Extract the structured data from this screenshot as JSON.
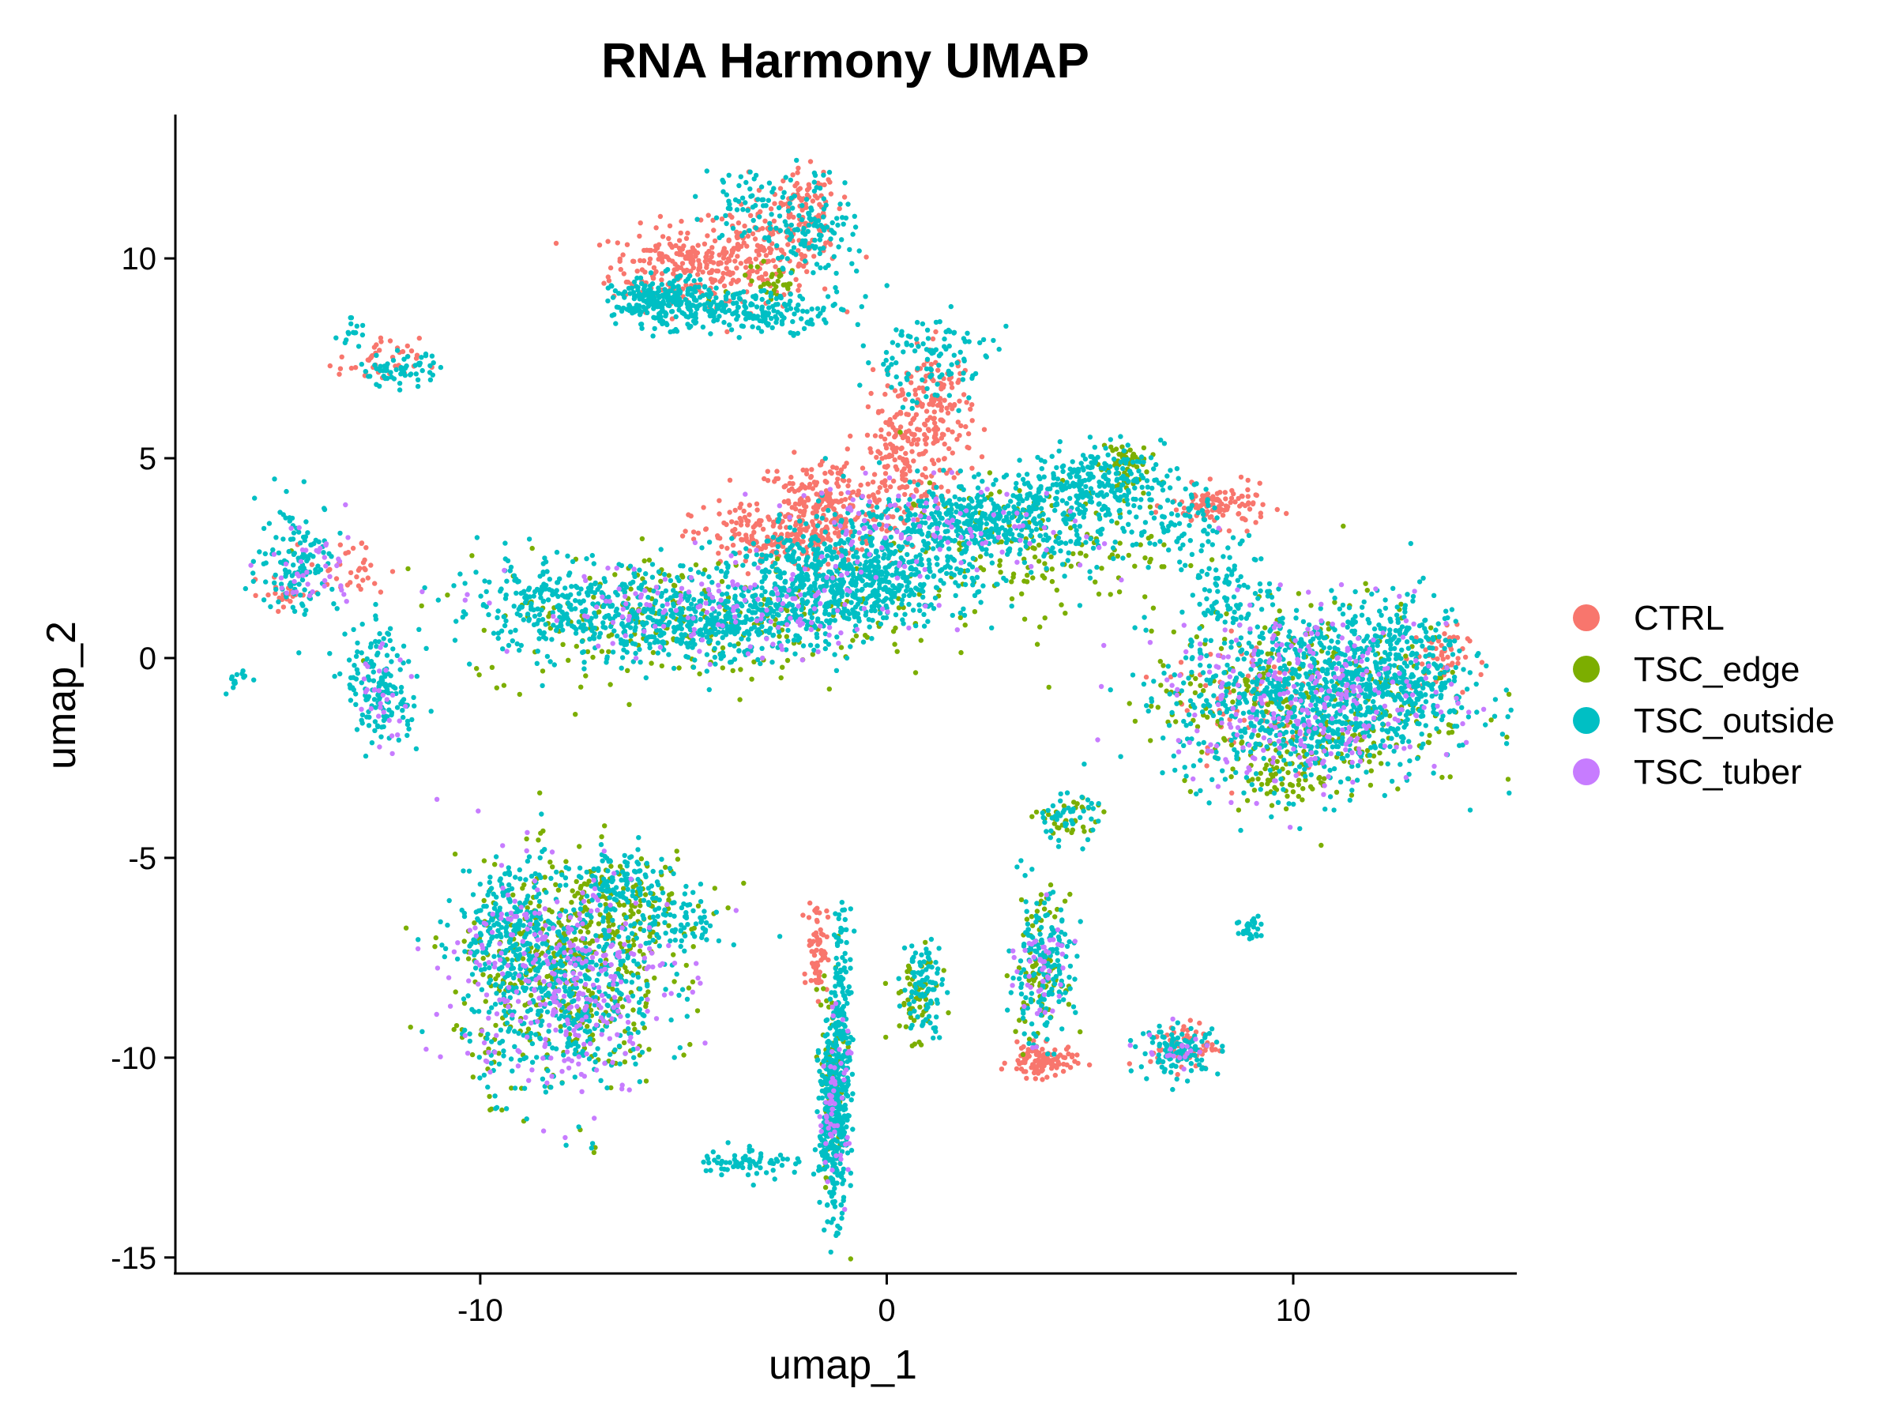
{
  "chart_data": {
    "type": "scatter",
    "title": "RNA Harmony UMAP",
    "xlabel": "umap_1",
    "ylabel": "umap_2",
    "xlim": [
      -17.5,
      15.5
    ],
    "ylim": [
      -15.4,
      13.6
    ],
    "x_ticks": [
      -10,
      0,
      10
    ],
    "x_tick_labels": [
      "-10",
      "0",
      "10"
    ],
    "y_ticks": [
      -15,
      -10,
      -5,
      0,
      5,
      10
    ],
    "y_tick_labels": [
      "-15",
      "-10",
      "-5",
      "0",
      "5",
      "10"
    ],
    "grid": false,
    "legend_position": "right",
    "series": [
      {
        "name": "CTRL",
        "color": "#F8766D",
        "clusters": [
          {
            "x": -5.0,
            "y": 9.8,
            "sx": 0.9,
            "sy": 0.5,
            "n": 220
          },
          {
            "x": -3.0,
            "y": 10.2,
            "sx": 0.9,
            "sy": 0.6,
            "n": 170
          },
          {
            "x": -2.0,
            "y": 11.2,
            "sx": 0.4,
            "sy": 0.5,
            "n": 80
          },
          {
            "x": -1.5,
            "y": 3.8,
            "sx": 0.9,
            "sy": 0.6,
            "n": 260
          },
          {
            "x": -3.0,
            "y": 3.0,
            "sx": 0.9,
            "sy": 0.4,
            "n": 160
          },
          {
            "x": 0.3,
            "y": 5.2,
            "sx": 0.4,
            "sy": 0.9,
            "n": 150
          },
          {
            "x": 1.3,
            "y": 6.0,
            "sx": 0.4,
            "sy": 0.9,
            "n": 150
          },
          {
            "x": 8.2,
            "y": 3.8,
            "sx": 0.6,
            "sy": 0.25,
            "n": 110
          },
          {
            "x": 3.8,
            "y": -10.1,
            "sx": 0.4,
            "sy": 0.2,
            "n": 110
          },
          {
            "x": -1.7,
            "y": -7.2,
            "sx": 0.12,
            "sy": 0.6,
            "n": 70
          },
          {
            "x": 13.5,
            "y": 0.0,
            "sx": 0.4,
            "sy": 0.4,
            "n": 50
          },
          {
            "x": -12.5,
            "y": 7.4,
            "sx": 0.5,
            "sy": 0.3,
            "n": 40
          },
          {
            "x": -13.2,
            "y": 2.2,
            "sx": 0.5,
            "sy": 0.4,
            "n": 35
          },
          {
            "x": -14.8,
            "y": 1.6,
            "sx": 0.3,
            "sy": 0.2,
            "n": 20
          },
          {
            "x": 7.3,
            "y": -9.7,
            "sx": 0.4,
            "sy": 0.3,
            "n": 60
          },
          {
            "x": 9.0,
            "y": -1.0,
            "sx": 1.0,
            "sy": 1.0,
            "n": 70
          }
        ]
      },
      {
        "name": "TSC_edge",
        "color": "#7CAE00",
        "clusters": [
          {
            "x": -4.5,
            "y": 1.0,
            "sx": 3.0,
            "sy": 0.8,
            "n": 250
          },
          {
            "x": 3.5,
            "y": 2.8,
            "sx": 1.6,
            "sy": 0.8,
            "n": 150
          },
          {
            "x": 5.8,
            "y": 4.8,
            "sx": 0.3,
            "sy": 0.4,
            "n": 60
          },
          {
            "x": 10.5,
            "y": -1.0,
            "sx": 2.0,
            "sy": 1.2,
            "n": 320
          },
          {
            "x": -8.0,
            "y": -8.0,
            "sx": 1.3,
            "sy": 1.4,
            "n": 380
          },
          {
            "x": -6.5,
            "y": -6.0,
            "sx": 1.0,
            "sy": 0.6,
            "n": 120
          },
          {
            "x": 3.8,
            "y": -7.8,
            "sx": 0.3,
            "sy": 0.9,
            "n": 90
          },
          {
            "x": 0.7,
            "y": -8.5,
            "sx": 0.3,
            "sy": 0.5,
            "n": 60
          },
          {
            "x": 4.5,
            "y": -4.1,
            "sx": 0.4,
            "sy": 0.3,
            "n": 35
          },
          {
            "x": -1.4,
            "y": -10.5,
            "sx": 0.2,
            "sy": 1.5,
            "n": 60
          },
          {
            "x": 10.0,
            "y": -3.0,
            "sx": 0.6,
            "sy": 0.3,
            "n": 60
          },
          {
            "x": -3.0,
            "y": 9.4,
            "sx": 0.5,
            "sy": 0.4,
            "n": 35
          }
        ]
      },
      {
        "name": "TSC_outside",
        "color": "#00BFC4",
        "clusters": [
          {
            "x": -5.5,
            "y": 8.9,
            "sx": 0.6,
            "sy": 0.3,
            "n": 260
          },
          {
            "x": -3.0,
            "y": 8.7,
            "sx": 1.0,
            "sy": 0.25,
            "n": 170
          },
          {
            "x": -1.8,
            "y": 10.8,
            "sx": 0.5,
            "sy": 0.7,
            "n": 120
          },
          {
            "x": -3.5,
            "y": 11.4,
            "sx": 0.5,
            "sy": 0.5,
            "n": 60
          },
          {
            "x": 1.0,
            "y": 7.5,
            "sx": 0.8,
            "sy": 0.6,
            "n": 110
          },
          {
            "x": -8.0,
            "y": 1.3,
            "sx": 1.4,
            "sy": 0.6,
            "n": 260
          },
          {
            "x": -4.5,
            "y": 0.9,
            "sx": 1.8,
            "sy": 0.5,
            "n": 520
          },
          {
            "x": -1.0,
            "y": 2.0,
            "sx": 1.5,
            "sy": 0.6,
            "n": 680
          },
          {
            "x": 2.5,
            "y": 3.4,
            "sx": 1.7,
            "sy": 0.5,
            "n": 560
          },
          {
            "x": 5.2,
            "y": 4.5,
            "sx": 0.8,
            "sy": 0.4,
            "n": 200
          },
          {
            "x": 7.2,
            "y": 3.5,
            "sx": 0.5,
            "sy": 0.5,
            "n": 70
          },
          {
            "x": 8.5,
            "y": 1.8,
            "sx": 0.5,
            "sy": 0.6,
            "n": 90
          },
          {
            "x": 10.5,
            "y": -1.0,
            "sx": 1.7,
            "sy": 1.1,
            "n": 950
          },
          {
            "x": 12.6,
            "y": 0.0,
            "sx": 0.8,
            "sy": 0.8,
            "n": 220
          },
          {
            "x": -8.0,
            "y": -8.2,
            "sx": 1.2,
            "sy": 1.3,
            "n": 560
          },
          {
            "x": -9.3,
            "y": -6.5,
            "sx": 0.6,
            "sy": 0.6,
            "n": 170
          },
          {
            "x": -6.6,
            "y": -5.6,
            "sx": 0.6,
            "sy": 0.4,
            "n": 110
          },
          {
            "x": -5.2,
            "y": -6.6,
            "sx": 0.6,
            "sy": 0.4,
            "n": 90
          },
          {
            "x": -1.3,
            "y": -11.5,
            "sx": 0.18,
            "sy": 1.2,
            "n": 380
          },
          {
            "x": -1.1,
            "y": -8.5,
            "sx": 0.12,
            "sy": 1.2,
            "n": 120
          },
          {
            "x": -3.4,
            "y": -12.6,
            "sx": 0.6,
            "sy": 0.2,
            "n": 70
          },
          {
            "x": 0.9,
            "y": -8.2,
            "sx": 0.25,
            "sy": 0.6,
            "n": 90
          },
          {
            "x": 3.8,
            "y": -7.8,
            "sx": 0.4,
            "sy": 0.9,
            "n": 170
          },
          {
            "x": 4.4,
            "y": -4.0,
            "sx": 0.4,
            "sy": 0.3,
            "n": 45
          },
          {
            "x": 7.2,
            "y": -9.8,
            "sx": 0.5,
            "sy": 0.3,
            "n": 110
          },
          {
            "x": 9.0,
            "y": -6.8,
            "sx": 0.2,
            "sy": 0.2,
            "n": 30
          },
          {
            "x": -14.5,
            "y": 2.5,
            "sx": 0.5,
            "sy": 0.7,
            "n": 130
          },
          {
            "x": -12.5,
            "y": -0.5,
            "sx": 0.4,
            "sy": 0.7,
            "n": 110
          },
          {
            "x": -12.3,
            "y": -1.3,
            "sx": 0.4,
            "sy": 0.4,
            "n": 50
          },
          {
            "x": -12.0,
            "y": 7.2,
            "sx": 0.5,
            "sy": 0.2,
            "n": 60
          },
          {
            "x": -13.1,
            "y": 8.1,
            "sx": 0.2,
            "sy": 0.2,
            "n": 15
          },
          {
            "x": -16.0,
            "y": -0.6,
            "sx": 0.12,
            "sy": 0.15,
            "n": 15
          }
        ]
      },
      {
        "name": "TSC_tuber",
        "color": "#C77CFF",
        "clusters": [
          {
            "x": -4.0,
            "y": 1.2,
            "sx": 2.5,
            "sy": 0.6,
            "n": 160
          },
          {
            "x": 1.0,
            "y": 3.2,
            "sx": 2.0,
            "sy": 0.6,
            "n": 120
          },
          {
            "x": 10.5,
            "y": -1.0,
            "sx": 1.7,
            "sy": 1.1,
            "n": 320
          },
          {
            "x": -8.0,
            "y": -8.0,
            "sx": 1.3,
            "sy": 1.4,
            "n": 330
          },
          {
            "x": -1.3,
            "y": -11.0,
            "sx": 0.18,
            "sy": 1.0,
            "n": 60
          },
          {
            "x": 3.8,
            "y": -7.8,
            "sx": 0.3,
            "sy": 0.8,
            "n": 50
          },
          {
            "x": -14.2,
            "y": 2.2,
            "sx": 0.6,
            "sy": 0.6,
            "n": 40
          },
          {
            "x": -12.5,
            "y": -1.0,
            "sx": 0.4,
            "sy": 0.6,
            "n": 30
          },
          {
            "x": 7.2,
            "y": -9.8,
            "sx": 0.4,
            "sy": 0.3,
            "n": 20
          }
        ]
      }
    ]
  }
}
